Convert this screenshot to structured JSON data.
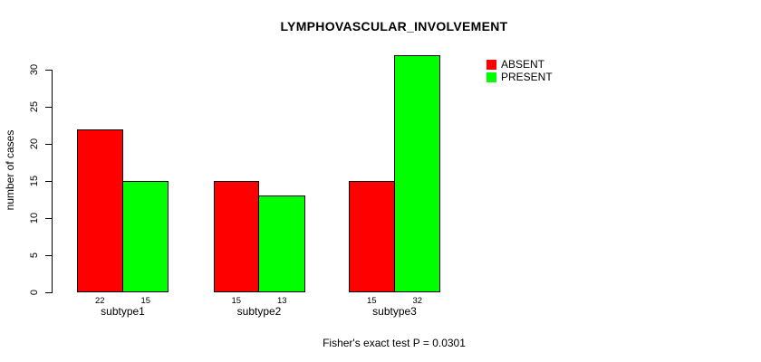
{
  "chart_data": {
    "type": "bar",
    "title": "LYMPHOVASCULAR_INVOLVEMENT",
    "categories": [
      "subtype1",
      "subtype2",
      "subtype3"
    ],
    "series": [
      {
        "name": "ABSENT",
        "color": "#ff0000",
        "values": [
          22,
          15,
          15
        ]
      },
      {
        "name": "PRESENT",
        "color": "#00ff00",
        "values": [
          15,
          13,
          32
        ]
      }
    ],
    "value_labels": [
      [
        22,
        15
      ],
      [
        15,
        13
      ],
      [
        15,
        32
      ]
    ],
    "xlabel": "",
    "ylabel": "number of cases",
    "yticks": [
      0,
      5,
      10,
      15,
      20,
      25,
      30
    ],
    "ylim": [
      0,
      32
    ],
    "grid": false,
    "legend_position": "top-right",
    "bar_border_color": "#000000",
    "footnote": "Fisher's exact test P = 0.0301"
  }
}
